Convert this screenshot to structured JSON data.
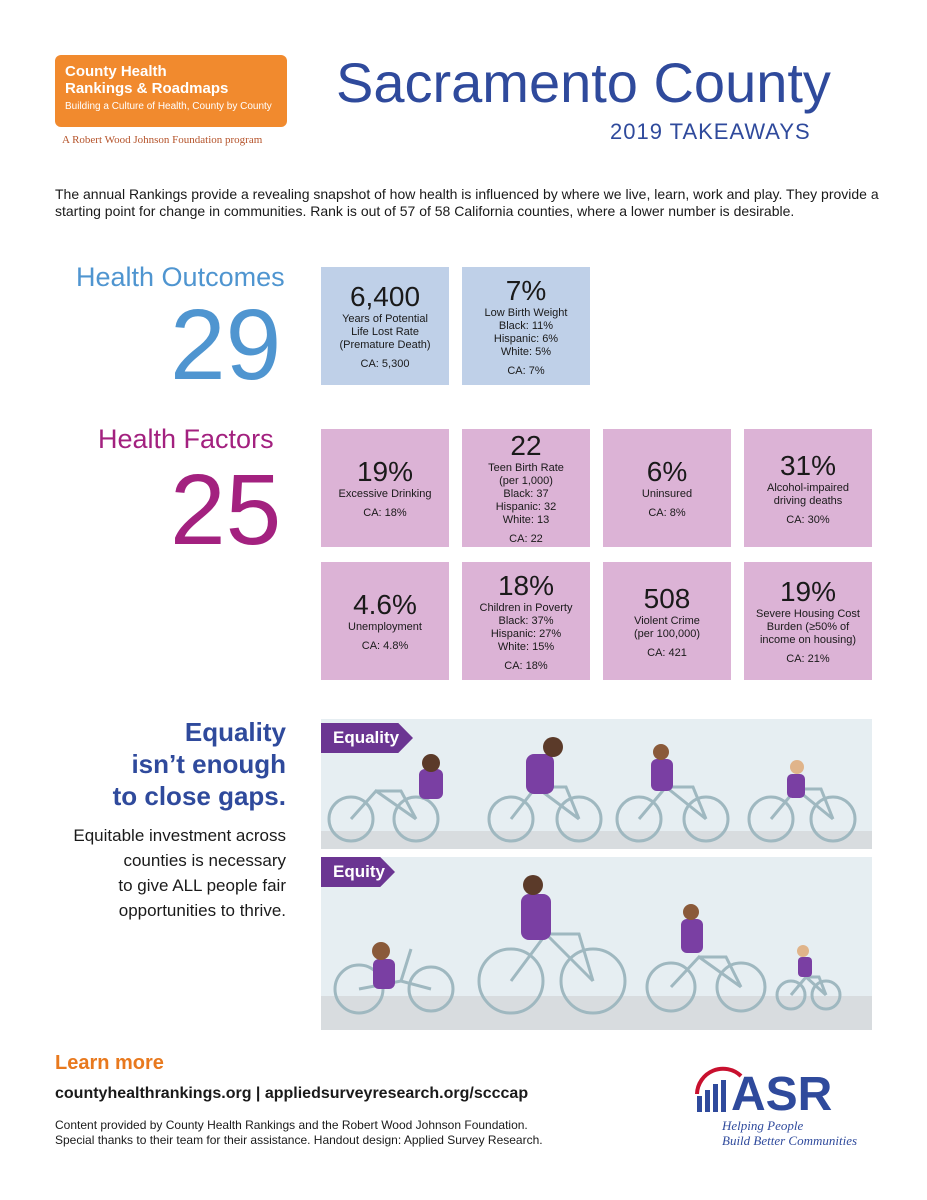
{
  "header": {
    "logo_line1": "County Health",
    "logo_line2": "Rankings & Roadmaps",
    "logo_line3": "Building a Culture of Health, County by County",
    "logo_sub": "A Robert Wood Johnson Foundation program",
    "title": "Sacramento County",
    "subtitle": "2019 TAKEAWAYS"
  },
  "intro": "The annual Rankings provide a revealing snapshot of how health is influenced by where we live, learn, work and play. They provide a starting point for change in communities. Rank is out of 57 of 58 California counties, where a lower number is desirable.",
  "health_outcomes": {
    "label": "Health Outcomes",
    "rank": "29",
    "boxes": [
      {
        "value": "6,400",
        "label": "Years of Potential\nLife Lost Rate\n(Premature Death)",
        "ca": "CA: 5,300"
      },
      {
        "value": "7%",
        "label": "Low Birth Weight\nBlack: 11%\nHispanic: 6%\nWhite: 5%",
        "ca": "CA: 7%"
      }
    ]
  },
  "health_factors": {
    "label": "Health Factors",
    "rank": "25",
    "boxes": [
      {
        "value": "19%",
        "label": "Excessive Drinking",
        "ca": "CA: 18%"
      },
      {
        "value": "22",
        "label": "Teen Birth Rate\n(per 1,000)\nBlack: 37\nHispanic: 32\nWhite: 13",
        "ca": "CA: 22"
      },
      {
        "value": "6%",
        "label": "Uninsured",
        "ca": "CA: 8%"
      },
      {
        "value": "31%",
        "label": "Alcohol-impaired\ndriving deaths",
        "ca": "CA: 30%"
      },
      {
        "value": "4.6%",
        "label": "Unemployment",
        "ca": "CA: 4.8%"
      },
      {
        "value": "18%",
        "label": "Children in Poverty\nBlack: 37%\nHispanic: 27%\nWhite: 15%",
        "ca": "CA: 18%"
      },
      {
        "value": "508",
        "label": "Violent Crime\n(per 100,000)",
        "ca": "CA: 421"
      },
      {
        "value": "19%",
        "label": "Severe Housing Cost\nBurden (≥50% of\nincome on housing)",
        "ca": "CA: 21%"
      }
    ]
  },
  "equality": {
    "heading": [
      "Equality",
      "isn’t enough",
      "to close gaps."
    ],
    "body": [
      "Equitable investment across",
      "counties is necessary",
      "to give ALL people fair",
      "opportunities to thrive."
    ],
    "tag_equality": "Equality",
    "tag_equity": "Equity"
  },
  "footer": {
    "learn_more": "Learn more",
    "links": "countyhealthrankings.org | appliedsurveyresearch.org/scccap",
    "credit": [
      "Content provided  by County Health Rankings and the Robert Wood Johnson Foundation.",
      "Special thanks to their team for their assistance. Handout design: Applied Survey Research."
    ],
    "asr": "ASR",
    "asr_tagline1": "Helping People",
    "asr_tagline2": "Build Better Communities"
  },
  "colors": {
    "title_blue": "#2f4a9c",
    "outcomes_blue": "#4f95d0",
    "factors_magenta": "#a3217f",
    "box_blue": "#bfd0e8",
    "box_pink": "#dcb3d6",
    "orange": "#f18a2e",
    "purple": "#6b3592"
  }
}
